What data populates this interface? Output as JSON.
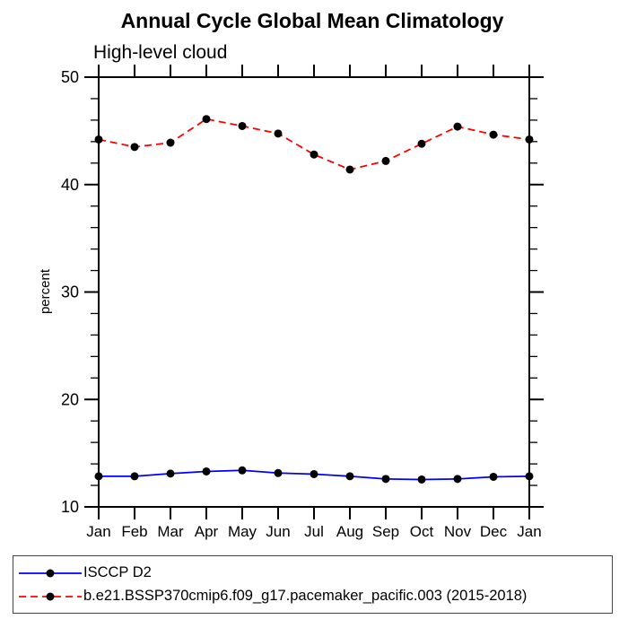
{
  "window": {
    "background": "#ffffff"
  },
  "chart_data": {
    "type": "line",
    "title": "Annual Cycle Global Mean Climatology",
    "subtitle": "High-level cloud",
    "ylabel": "percent",
    "xlabel": "",
    "x_tick_labels": [
      "Jan",
      "Feb",
      "Mar",
      "Apr",
      "May",
      "Jun",
      "Jul",
      "Aug",
      "Sep",
      "Oct",
      "Nov",
      "Dec",
      "Jan"
    ],
    "ylim": [
      10,
      50
    ],
    "y_major_ticks": [
      10,
      20,
      30,
      40,
      50
    ],
    "y_minor_step": 2,
    "grid": false,
    "axis_color": "#000000",
    "legend_position": "bottom-left framed box",
    "series": [
      {
        "name": "ISCCP D2",
        "line_color": "#0000ff",
        "line_style": "solid",
        "marker": "filled-circle",
        "marker_color": "#000000",
        "values": [
          12.85,
          12.85,
          13.1,
          13.3,
          13.4,
          13.15,
          13.05,
          12.85,
          12.6,
          12.55,
          12.6,
          12.8,
          12.85
        ]
      },
      {
        "name": "b.e21.BSSP370cmip6.f09_g17.pacemaker_pacific.003 (2015-2018)",
        "line_color": "#ff0000",
        "line_style": "dashed",
        "marker": "filled-circle",
        "marker_color": "#000000",
        "values": [
          44.2,
          43.5,
          43.9,
          46.1,
          45.45,
          44.75,
          42.8,
          41.4,
          42.2,
          43.8,
          45.4,
          44.65,
          44.2
        ]
      }
    ]
  }
}
